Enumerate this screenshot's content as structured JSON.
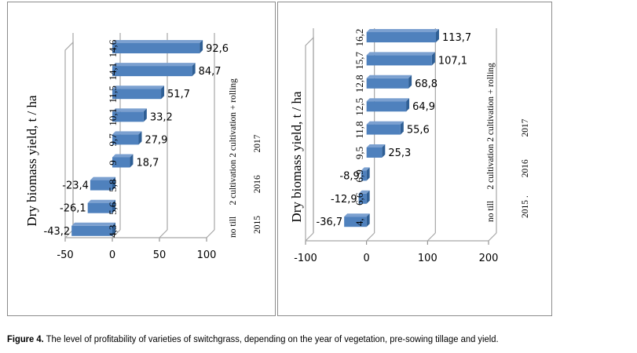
{
  "caption": {
    "label": "Figure 4.",
    "text": " The level of profitability of varieties of switchgrass, depending on the year of vegetation, pre-sowing tillage and yield."
  },
  "style": {
    "bar_color": "#4f81bd",
    "bar_top": "#7ba0d0",
    "bar_side": "#2f5f95",
    "grid_color": "#a6a6a6"
  },
  "chart_data": [
    {
      "type": "bar",
      "orientation": "horizontal",
      "three_d": true,
      "ylabel": "Dry biomass yield, t / ha",
      "categories": [
        "4,3",
        "5,6",
        "5,8",
        "9",
        "9,7",
        "10,1",
        "11,5",
        "14,1",
        "14,6"
      ],
      "values": [
        -43.2,
        -26.1,
        -23.4,
        18.7,
        27.9,
        33.2,
        51.7,
        84.7,
        92.6
      ],
      "value_labels": [
        "-43,2",
        "-26,1",
        "-23,4",
        "18,7",
        "27,9",
        "33,2",
        "51,7",
        "84,7",
        "92,6"
      ],
      "xlim": [
        -50,
        100
      ],
      "xticks": [
        "-50",
        "0",
        "50",
        "100"
      ],
      "xtick_values": [
        -50,
        0,
        50,
        100
      ],
      "grid": true,
      "right_labels": {
        "tillage": "no till     2 cultivation 2 cultivation + rolling",
        "years": "2015          2016          2017"
      }
    },
    {
      "type": "bar",
      "orientation": "horizontal",
      "three_d": true,
      "ylabel": "Dry biomass yield, t / ha",
      "categories": [
        "4,",
        "6,6",
        "6,9",
        "9,5",
        "11,8",
        "12,5",
        "12,8",
        "15,7",
        "16,2"
      ],
      "values": [
        -36.7,
        -12.9,
        -8.9,
        25.3,
        55.6,
        64.9,
        68.8,
        107.1,
        113.7
      ],
      "value_labels": [
        "-36,7",
        "-12,9",
        "-8,9",
        "25,3",
        "55,6",
        "64,9",
        "68,8",
        "107,1",
        "113,7"
      ],
      "xlim": [
        -100,
        200
      ],
      "xticks": [
        "-100",
        "0",
        "100",
        "200"
      ],
      "xtick_values": [
        -100,
        0,
        100,
        200
      ],
      "grid": true,
      "right_labels": {
        "tillage": "no till     2 cultivation 2 cultivation + rolling",
        "years": "2015 .        2016          2017"
      }
    }
  ]
}
